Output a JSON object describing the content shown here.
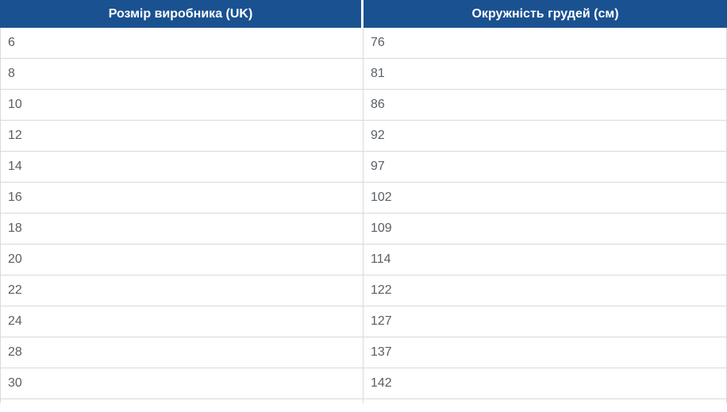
{
  "colors": {
    "header_bg": "#1a5190",
    "header_text": "#ffffff",
    "row_text": "#595f66",
    "border": "#d9d9d9",
    "row_bg": "#ffffff"
  },
  "table": {
    "headers": [
      "Розмір виробника (UK)",
      "Окружність грудей (см)"
    ],
    "rows": [
      [
        "6",
        "76"
      ],
      [
        "8",
        "81"
      ],
      [
        "10",
        "86"
      ],
      [
        "12",
        "92"
      ],
      [
        "14",
        "97"
      ],
      [
        "16",
        "102"
      ],
      [
        "18",
        "109"
      ],
      [
        "20",
        "114"
      ],
      [
        "22",
        "122"
      ],
      [
        "24",
        "127"
      ],
      [
        "28",
        "137"
      ],
      [
        "30",
        "142"
      ]
    ]
  },
  "chart_data": {
    "type": "table",
    "title": "",
    "columns": [
      "Розмір виробника (UK)",
      "Окружність грудей (см)"
    ],
    "rows": [
      [
        6,
        76
      ],
      [
        8,
        81
      ],
      [
        10,
        86
      ],
      [
        12,
        92
      ],
      [
        14,
        97
      ],
      [
        16,
        102
      ],
      [
        18,
        109
      ],
      [
        20,
        114
      ],
      [
        22,
        122
      ],
      [
        24,
        127
      ],
      [
        28,
        137
      ],
      [
        30,
        142
      ]
    ]
  }
}
